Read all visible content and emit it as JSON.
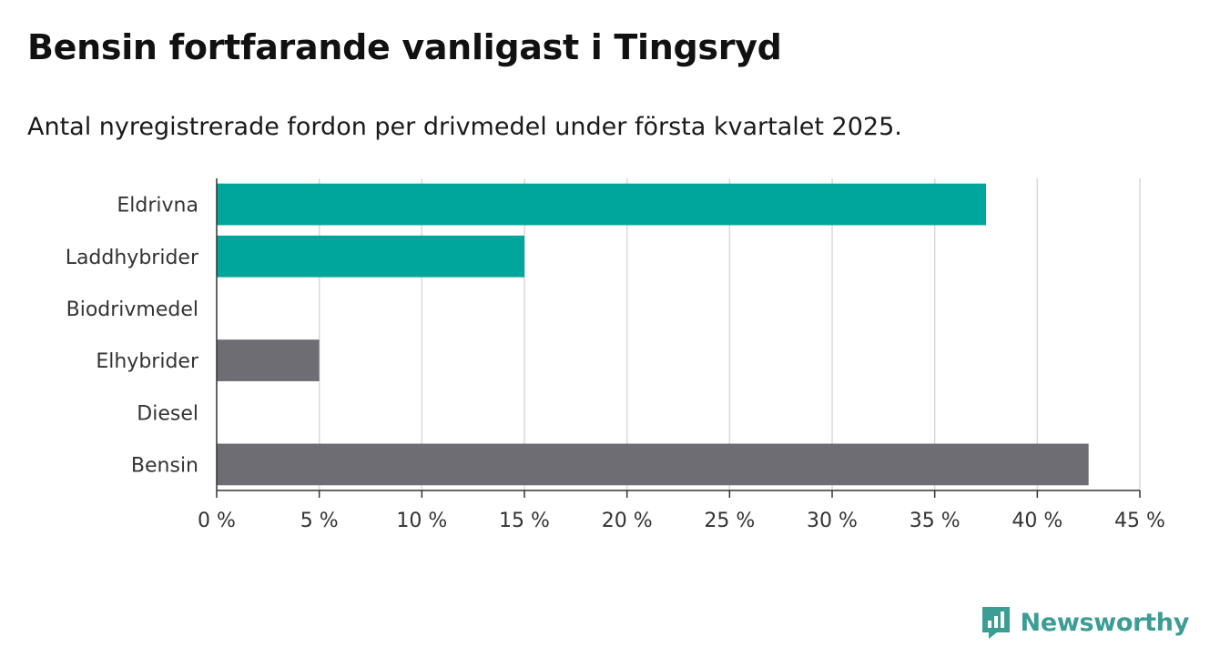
{
  "title": "Bensin fortfarande vanligast i Tingsryd",
  "subtitle": "Antal nyregistrerade fordon per drivmedel under första kvartalet 2025.",
  "brand": {
    "name": "Newsworthy",
    "icon": "newsworthy-logo-icon"
  },
  "colors": {
    "highlight": "#00a59b",
    "muted": "#6e6d73",
    "grid": "#d9d9d9",
    "brand": "#3b9d94"
  },
  "chart_data": {
    "type": "bar",
    "orientation": "horizontal",
    "title": "Bensin fortfarande vanligast i Tingsryd",
    "subtitle": "Antal nyregistrerade fordon per drivmedel under första kvartalet 2025.",
    "xlabel": "",
    "ylabel": "",
    "categories": [
      "Eldrivna",
      "Laddhybrider",
      "Biodrivmedel",
      "Elhybrider",
      "Diesel",
      "Bensin"
    ],
    "values": [
      37.5,
      15,
      0,
      5,
      0,
      42.5
    ],
    "bar_colors": [
      "#00a59b",
      "#00a59b",
      "#00a59b",
      "#6e6d73",
      "#6e6d73",
      "#6e6d73"
    ],
    "xlim": [
      0,
      45
    ],
    "xticks": [
      0,
      5,
      10,
      15,
      20,
      25,
      30,
      35,
      40,
      45
    ],
    "xtick_labels": [
      "0 %",
      "5 %",
      "10 %",
      "15 %",
      "20 %",
      "25 %",
      "30 %",
      "35 %",
      "40 %",
      "45 %"
    ],
    "grid": true,
    "legend": false
  }
}
